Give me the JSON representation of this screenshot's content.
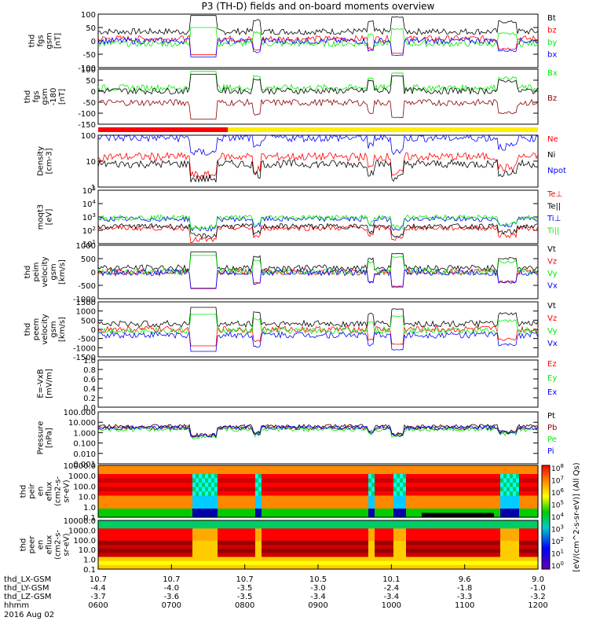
{
  "title": "P3 (TH-D) fields and on-board moments overview",
  "colors": {
    "black": "#000000",
    "red": "#ff0000",
    "green": "#00ee00",
    "blue": "#0000ff",
    "brown": "#8b0000",
    "yellow": "#ffee00",
    "cyan": "#00dddd"
  },
  "chart_data": [
    {
      "type": "line",
      "panel": 1,
      "ylabel": [
        "thd",
        "fgs",
        "gsm",
        "[nT]"
      ],
      "yticks": [
        "100",
        "50",
        "0",
        "-50",
        "-100"
      ],
      "ylim": [
        -100,
        100
      ],
      "series": [
        {
          "name": "Bt",
          "color": "#000000",
          "level": 35
        },
        {
          "name": "bz",
          "color": "#ff0000",
          "level": 8
        },
        {
          "name": "by",
          "color": "#00ee00",
          "level": -10
        },
        {
          "name": "bx",
          "color": "#0000ff",
          "level": 0
        }
      ]
    },
    {
      "type": "line",
      "panel": 2,
      "ylabel": [
        "thd",
        "fgs",
        "gsm",
        "-180",
        "[nT]"
      ],
      "yticks": [
        "100",
        "50",
        "0",
        "-50",
        "-100",
        "-150"
      ],
      "ylim": [
        -180,
        100
      ],
      "series": [
        {
          "name": "Bx",
          "color": "#00ee00",
          "level": 5
        },
        {
          "name": "Bz",
          "color": "#8b0000",
          "level": -70
        },
        {
          "name": "",
          "color": "#000000",
          "level": -10
        }
      ]
    },
    {
      "type": "line",
      "panel": 3,
      "ylabel": [
        "Density",
        "[cm-3]"
      ],
      "yticks": [
        "100",
        "10",
        "1"
      ],
      "ylim": [
        0.6,
        200
      ],
      "log": true,
      "series": [
        {
          "name": "Ne",
          "color": "#ff0000",
          "level": 18
        },
        {
          "name": "Ni",
          "color": "#000000",
          "level": 8
        },
        {
          "name": "Npot",
          "color": "#0000ff",
          "level": 150
        }
      ]
    },
    {
      "type": "line",
      "panel": 4,
      "ylabel": [
        "moqt3",
        "[eV]"
      ],
      "yticks": [
        "10^5",
        "10^4",
        "10^3",
        "10^2",
        "10^1"
      ],
      "ylim": [
        10,
        100000
      ],
      "log": true,
      "series": [
        {
          "name": "Te⊥",
          "color": "#ff0000",
          "level": 150
        },
        {
          "name": "Te||",
          "color": "#000000",
          "level": 200
        },
        {
          "name": "Ti⊥",
          "color": "#0000ff",
          "level": 700
        },
        {
          "name": "Ti||",
          "color": "#00ee00",
          "level": 900
        }
      ]
    },
    {
      "type": "line",
      "panel": 5,
      "ylabel": [
        "thd",
        "peim",
        "velocity",
        "gsm",
        "[km/s]"
      ],
      "yticks": [
        "1000",
        "500",
        "0",
        "-500",
        "-1000"
      ],
      "ylim": [
        -1000,
        1000
      ],
      "series": [
        {
          "name": "Vt",
          "color": "#000000",
          "level": 150
        },
        {
          "name": "Vz",
          "color": "#ff0000",
          "level": 0
        },
        {
          "name": "Vy",
          "color": "#00ee00",
          "level": 20
        },
        {
          "name": "Vx",
          "color": "#0000ff",
          "level": -20
        }
      ]
    },
    {
      "type": "line",
      "panel": 6,
      "ylabel": [
        "thd",
        "peem",
        "velocity",
        "gsm",
        "[km/s]"
      ],
      "yticks": [
        "1500",
        "1000",
        "500",
        "0",
        "-500",
        "-1000",
        "-1500"
      ],
      "ylim": [
        -1500,
        1500
      ],
      "series": [
        {
          "name": "Vt",
          "color": "#000000",
          "level": 300
        },
        {
          "name": "Vz",
          "color": "#ff0000",
          "level": 0
        },
        {
          "name": "Vy",
          "color": "#00ee00",
          "level": -80
        },
        {
          "name": "Vx",
          "color": "#0000ff",
          "level": -300
        }
      ]
    },
    {
      "type": "line",
      "panel": 7,
      "ylabel": [
        "E=-VxB",
        "[mV/m]"
      ],
      "yticks": [
        "1.0",
        "0.8",
        "0.6",
        "0.4",
        "0.2",
        "0.0"
      ],
      "ylim": [
        0,
        1
      ],
      "series": [
        {
          "name": "Ez",
          "color": "#ff0000"
        },
        {
          "name": "Ey",
          "color": "#00ee00"
        },
        {
          "name": "Ex",
          "color": "#0000ff"
        }
      ]
    },
    {
      "type": "line",
      "panel": 8,
      "ylabel": [
        "Pressure",
        "[nPa]"
      ],
      "yticks": [
        "100.000",
        "10.000",
        "1.000",
        "0.100",
        "0.010",
        "0.001"
      ],
      "ylim": [
        0.001,
        100
      ],
      "log": true,
      "series": [
        {
          "name": "Pt",
          "color": "#000000",
          "level": 4
        },
        {
          "name": "Pb",
          "color": "#8b0000",
          "level": 3
        },
        {
          "name": "Pe",
          "color": "#00ee00",
          "level": 2
        },
        {
          "name": "Pi",
          "color": "#0000ff",
          "level": 3
        }
      ]
    },
    {
      "type": "heatmap",
      "panel": 9,
      "ylabel": [
        "thd",
        "peir",
        "en",
        "eflux",
        "(cm2-s-",
        "sr-eV)"
      ],
      "yticks": [
        "10000.0",
        "1000.0",
        "100.0",
        "10.0",
        "1.0",
        "0.1"
      ]
    },
    {
      "type": "heatmap",
      "panel": 10,
      "ylabel": [
        "thd",
        "peer",
        "en",
        "eflux",
        "(cm2-s-",
        "sr-eV)"
      ],
      "yticks": [
        "10000.0",
        "1000.0",
        "100.0",
        "10.0",
        "1.0",
        "0.1"
      ]
    }
  ],
  "colorbar": {
    "ticks": [
      "10^8",
      "10^7",
      "10^6",
      "10^5",
      "10^4",
      "10^3",
      "10^2",
      "10^1",
      "10^0"
    ],
    "title": "[eV/(cm^2-s-sr-eV)] (All Qs)",
    "title_lower": "[eV/(cm^2-s-sr-eV)]"
  },
  "xaxis": {
    "rows": [
      {
        "label": "thd_LX-GSM",
        "values": [
          "10.7",
          "10.7",
          "10.7",
          "10.5",
          "10.1",
          "9.6",
          "9.0"
        ]
      },
      {
        "label": "thd_LY-GSM",
        "values": [
          "-4.4",
          "-4.0",
          "-3.5",
          "-3.0",
          "-2.4",
          "-1.8",
          "-1.0"
        ]
      },
      {
        "label": "thd_LZ-GSM",
        "values": [
          "-3.7",
          "-3.6",
          "-3.5",
          "-3.4",
          "-3.4",
          "-3.3",
          "-3.2"
        ]
      },
      {
        "label": "hhmm",
        "values": [
          "0600",
          "0700",
          "0800",
          "0900",
          "1000",
          "1100",
          "1200"
        ]
      }
    ],
    "date": "2016 Aug 02"
  }
}
